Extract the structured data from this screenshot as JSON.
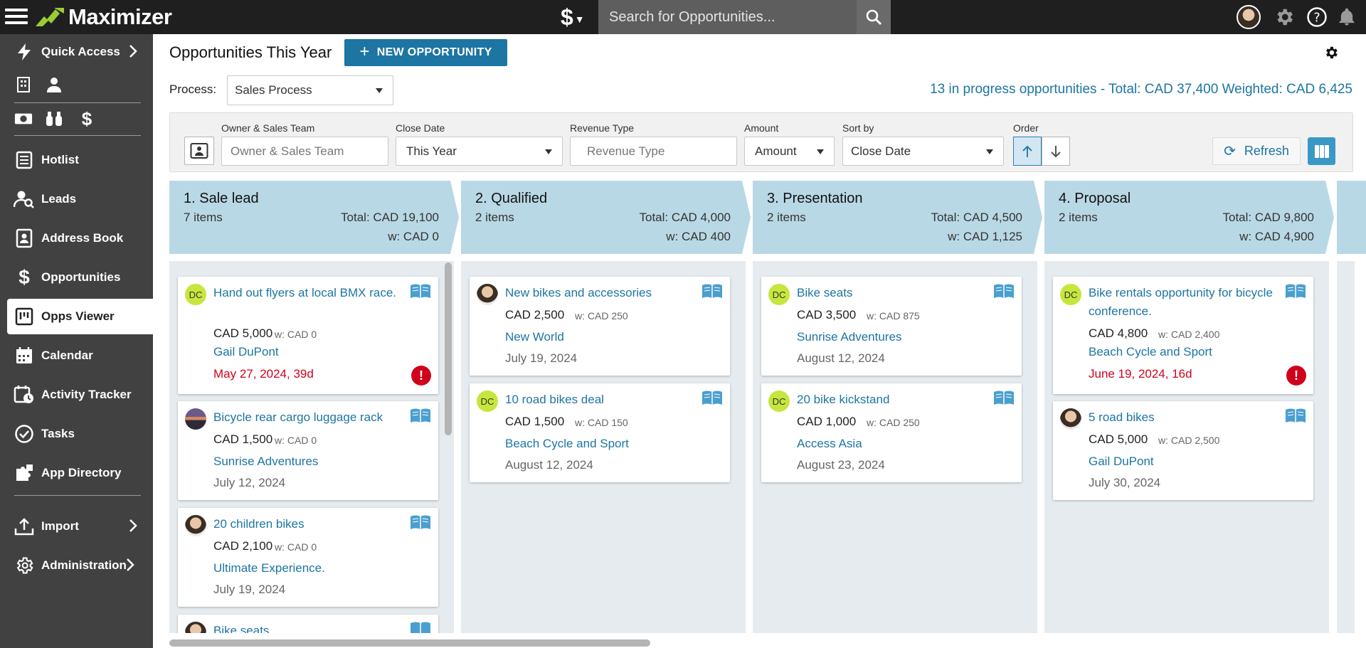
{
  "app": {
    "name": "Maximizer",
    "search_placeholder": "Search for Opportunities...",
    "dollar_menu": "$"
  },
  "sidebar": {
    "items": [
      {
        "label": "Quick Access",
        "icon": "lightning-icon"
      },
      {
        "label": "Hotlist",
        "icon": "list-icon"
      },
      {
        "label": "Leads",
        "icon": "person-search-icon"
      },
      {
        "label": "Address Book",
        "icon": "contact-card-icon"
      },
      {
        "label": "Opportunities",
        "icon": "dollar-icon"
      },
      {
        "label": "Opps Viewer",
        "icon": "kanban-icon"
      },
      {
        "label": "Calendar",
        "icon": "calendar-icon"
      },
      {
        "label": "Activity Tracker",
        "icon": "calendar-clock-icon"
      },
      {
        "label": "Tasks",
        "icon": "check-circle-icon"
      },
      {
        "label": "App Directory",
        "icon": "puzzle-icon"
      },
      {
        "label": "Import",
        "icon": "upload-icon"
      },
      {
        "label": "Administration",
        "icon": "gear-icon"
      }
    ]
  },
  "header": {
    "title": "Opportunities This Year",
    "new_button": "NEW OPPORTUNITY",
    "process_label": "Process:",
    "process_value": "Sales Process",
    "summary": "13 in progress opportunities - Total: CAD 37,400 Weighted: CAD 6,425"
  },
  "filters": {
    "owner_label": "Owner & Sales Team",
    "owner_placeholder": "Owner & Sales Team",
    "close_date_label": "Close Date",
    "close_date_value": "This Year",
    "revenue_label": "Revenue Type",
    "revenue_placeholder": "Revenue Type",
    "amount_label": "Amount",
    "amount_value": "Amount",
    "sort_label": "Sort by",
    "sort_value": "Close Date",
    "order_label": "Order",
    "refresh": "Refresh"
  },
  "stages": [
    {
      "name": "1. Sale lead",
      "count": "7 items",
      "total": "Total: CAD 19,100",
      "weighted": "w: CAD 0"
    },
    {
      "name": "2. Qualified",
      "count": "2 items",
      "total": "Total: CAD 4,000",
      "weighted": "w: CAD 400"
    },
    {
      "name": "3. Presentation",
      "count": "2 items",
      "total": "Total: CAD 4,500",
      "weighted": "w: CAD 1,125"
    },
    {
      "name": "4. Proposal",
      "count": "2 items",
      "total": "Total: CAD 9,800",
      "weighted": "w: CAD 4,900"
    }
  ],
  "cards": {
    "c0": [
      {
        "title": "Hand out flyers at local BMX race.",
        "owner": "DC",
        "amount": "CAD 5,000",
        "weighted": "w: CAD 0",
        "company": "Gail DuPont",
        "date": "May 27, 2024, 39d"
      },
      {
        "title": "Bicycle rear cargo luggage rack",
        "amount": "CAD 1,500",
        "weighted": "w: CAD 0",
        "company": "Sunrise Adventures",
        "date": "July 12, 2024"
      },
      {
        "title": "20 children bikes",
        "amount": "CAD 2,100",
        "weighted": "w: CAD 0",
        "company": "Ultimate Experience.",
        "date": "July 19, 2024"
      },
      {
        "title": "Bike seats"
      }
    ],
    "c1": [
      {
        "title": "New bikes and accessories",
        "amount": "CAD 2,500",
        "weighted": "w: CAD 250",
        "company": "New World",
        "date": "July 19, 2024"
      },
      {
        "title": "10 road bikes deal",
        "owner": "DC",
        "amount": "CAD 1,500",
        "weighted": "w: CAD 150",
        "company": "Beach Cycle and Sport",
        "date": "August 12, 2024"
      }
    ],
    "c2": [
      {
        "title": "Bike seats",
        "owner": "DC",
        "amount": "CAD 3,500",
        "weighted": "w: CAD 875",
        "company": "Sunrise Adventures",
        "date": "August 12, 2024"
      },
      {
        "title": "20 bike kickstand",
        "owner": "DC",
        "amount": "CAD 1,000",
        "weighted": "w: CAD 250",
        "company": "Access Asia",
        "date": "August 23, 2024"
      }
    ],
    "c3": [
      {
        "title": "Bike rentals opportunity for bicycle conference.",
        "owner": "DC",
        "amount": "CAD 4,800",
        "weighted": "w: CAD 2,400",
        "company": "Beach Cycle and Sport",
        "date": "June 19, 2024, 16d"
      },
      {
        "title": "5 road bikes",
        "amount": "CAD 5,000",
        "weighted": "w: CAD 2,500",
        "company": "Gail DuPont",
        "date": "July 30, 2024"
      }
    ]
  },
  "alert_symbol": "!",
  "colors": {
    "accent": "#1d75a3",
    "stage_header": "#b9d8e6",
    "overdue": "#d0021b",
    "owner_badge": "#c7e63d"
  }
}
